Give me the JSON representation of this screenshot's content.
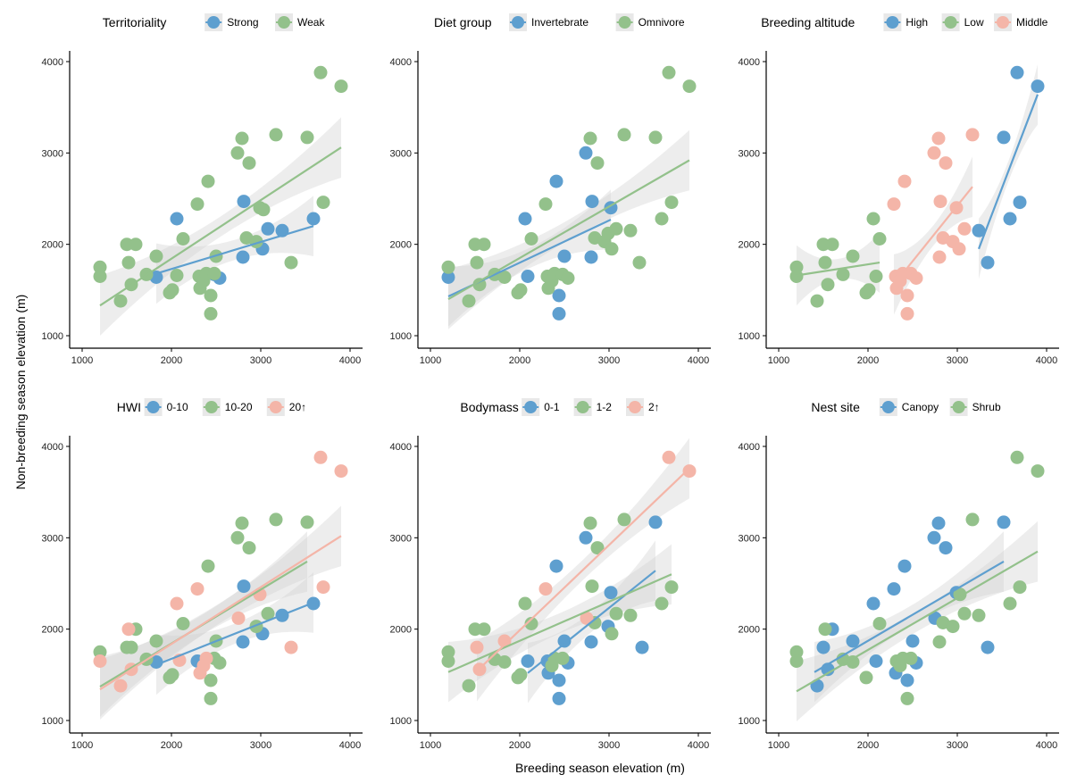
{
  "xlabel": "Breeding season elevation (m)",
  "ylabel": "Non-breeding season elevation (m)",
  "chart_data": [
    {
      "type": "scatter",
      "legend_title": "Territoriality",
      "xlim": [
        1000,
        4000
      ],
      "ylim": [
        1000,
        4000
      ],
      "xticks": [
        "1000",
        "2000",
        "3000",
        "4000"
      ],
      "yticks": [
        "1000",
        "2000",
        "3000",
        "4000"
      ],
      "grid": false,
      "legend_position": "top",
      "series": [
        {
          "name": "Strong",
          "color": "#5e9fcf",
          "x": [
            1830,
            2060,
            2480,
            2540,
            2800,
            2810,
            3020,
            3080,
            3240,
            3590
          ],
          "y": [
            1640,
            2280,
            1670,
            1630,
            1860,
            2470,
            1950,
            2170,
            2150,
            2280
          ],
          "fit": {
            "x": [
              1830,
              3590
            ],
            "y": [
              1680,
              2200
            ]
          }
        },
        {
          "name": "Weak",
          "color": "#93c18b",
          "x": [
            1200,
            1200,
            1430,
            1500,
            1520,
            1550,
            1600,
            1720,
            1830,
            1980,
            2010,
            2060,
            2130,
            2290,
            2310,
            2320,
            2360,
            2390,
            2410,
            2440,
            2440,
            2480,
            2500,
            2740,
            2790,
            2840,
            2870,
            2950,
            2990,
            3030,
            3170,
            3340,
            3520,
            3670,
            3700,
            3900
          ],
          "y": [
            1750,
            1650,
            1380,
            2000,
            1800,
            1560,
            2000,
            1670,
            1870,
            1470,
            1500,
            1660,
            2060,
            2440,
            1650,
            1520,
            1600,
            1680,
            2690,
            1440,
            1240,
            1680,
            1870,
            3000,
            3160,
            2070,
            2890,
            2030,
            2400,
            2380,
            3200,
            1800,
            3170,
            3880,
            2460,
            3730
          ],
          "fit": {
            "x": [
              1200,
              3900
            ],
            "y": [
              1330,
              3060
            ]
          }
        }
      ]
    },
    {
      "type": "scatter",
      "legend_title": "Diet group",
      "xlim": [
        1000,
        4000
      ],
      "ylim": [
        1000,
        4000
      ],
      "xticks": [
        "1000",
        "2000",
        "3000",
        "4000"
      ],
      "yticks": [
        "1000",
        "2000",
        "3000",
        "4000"
      ],
      "grid": false,
      "legend_position": "top",
      "series": [
        {
          "name": "Invertebrate",
          "color": "#5e9fcf",
          "x": [
            1200,
            2060,
            2090,
            2410,
            2440,
            2440,
            2500,
            2740,
            2800,
            2810,
            3020
          ],
          "y": [
            1640,
            2280,
            1650,
            2690,
            1440,
            1240,
            1870,
            3000,
            1860,
            2470,
            2400
          ],
          "fit": {
            "x": [
              1200,
              3020
            ],
            "y": [
              1430,
              2270
            ]
          }
        },
        {
          "name": "Omnivore",
          "color": "#93c18b",
          "x": [
            1200,
            1430,
            1500,
            1520,
            1550,
            1600,
            1720,
            1830,
            1980,
            2010,
            2130,
            2290,
            2310,
            2320,
            2360,
            2390,
            2480,
            2540,
            2790,
            2840,
            2870,
            2950,
            2990,
            3030,
            3080,
            3170,
            3240,
            3340,
            3520,
            3590,
            3670,
            3700,
            3900
          ],
          "y": [
            1750,
            1380,
            2000,
            1800,
            1560,
            2000,
            1670,
            1640,
            1470,
            1500,
            2060,
            2440,
            1650,
            1520,
            1600,
            1680,
            1670,
            1630,
            3160,
            2070,
            2890,
            2030,
            2120,
            1950,
            2170,
            3200,
            2150,
            1800,
            3170,
            2280,
            3880,
            2460,
            3730
          ],
          "fit": {
            "x": [
              1200,
              3900
            ],
            "y": [
              1400,
              2920
            ]
          }
        }
      ]
    },
    {
      "type": "scatter",
      "legend_title": "Breeding altitude",
      "xlim": [
        1000,
        4000
      ],
      "ylim": [
        1000,
        4000
      ],
      "xticks": [
        "1000",
        "2000",
        "3000",
        "4000"
      ],
      "yticks": [
        "1000",
        "2000",
        "3000",
        "4000"
      ],
      "grid": false,
      "legend_position": "top",
      "series": [
        {
          "name": "High",
          "color": "#5e9fcf",
          "x": [
            3240,
            3340,
            3520,
            3590,
            3670,
            3700,
            3900
          ],
          "y": [
            2150,
            1800,
            3170,
            2280,
            3880,
            2460,
            3730
          ],
          "fit": {
            "x": [
              3240,
              3900
            ],
            "y": [
              1950,
              3640
            ]
          }
        },
        {
          "name": "Low",
          "color": "#93c18b",
          "x": [
            1200,
            1200,
            1430,
            1500,
            1520,
            1550,
            1600,
            1720,
            1830,
            1980,
            2010,
            2060,
            2090,
            2130
          ],
          "y": [
            1750,
            1650,
            1380,
            2000,
            1800,
            1560,
            2000,
            1670,
            1870,
            1470,
            1500,
            2280,
            1650,
            2060
          ],
          "fit": {
            "x": [
              1200,
              2130
            ],
            "y": [
              1660,
              1800
            ]
          }
        },
        {
          "name": "Middle",
          "color": "#f4b5a8",
          "x": [
            2290,
            2310,
            2320,
            2360,
            2390,
            2410,
            2440,
            2440,
            2480,
            2540,
            2740,
            2790,
            2800,
            2810,
            2840,
            2870,
            2950,
            2990,
            3020,
            3080,
            3170
          ],
          "y": [
            2440,
            1650,
            1520,
            1600,
            1680,
            2690,
            1440,
            1240,
            1680,
            1630,
            3000,
            3160,
            1860,
            2470,
            2070,
            2890,
            2030,
            2400,
            1950,
            2170,
            3200
          ],
          "fit": {
            "x": [
              2290,
              3170
            ],
            "y": [
              1560,
              2630
            ]
          }
        }
      ]
    },
    {
      "type": "scatter",
      "legend_title": "HWI",
      "xlim": [
        1000,
        4000
      ],
      "ylim": [
        1000,
        4000
      ],
      "xticks": [
        "1000",
        "2000",
        "3000",
        "4000"
      ],
      "yticks": [
        "1000",
        "2000",
        "3000",
        "4000"
      ],
      "grid": false,
      "legend_position": "top",
      "series": [
        {
          "name": "0-10",
          "color": "#5e9fcf",
          "x": [
            1830,
            2290,
            2810,
            2800,
            3020,
            3240,
            3590
          ],
          "y": [
            1640,
            1650,
            2470,
            1860,
            1950,
            2150,
            2280
          ],
          "fit": {
            "x": [
              1830,
              3590
            ],
            "y": [
              1610,
              2290
            ]
          }
        },
        {
          "name": "10-20",
          "color": "#93c18b",
          "x": [
            1200,
            1500,
            1550,
            1600,
            1720,
            1830,
            1980,
            2010,
            2130,
            2410,
            2440,
            2440,
            2480,
            2500,
            2540,
            2740,
            2790,
            2870,
            2950,
            3080,
            3170,
            3520
          ],
          "y": [
            1750,
            1800,
            1800,
            2000,
            1670,
            1870,
            1470,
            1500,
            2060,
            2690,
            1440,
            1240,
            1680,
            1870,
            1630,
            3000,
            3160,
            2890,
            2030,
            2170,
            3200,
            3170
          ],
          "fit": {
            "x": [
              1200,
              3520
            ],
            "y": [
              1370,
              2740
            ]
          }
        },
        {
          "name": "20↑",
          "color": "#f4b5a8",
          "x": [
            1200,
            1430,
            1520,
            1550,
            2060,
            2090,
            2290,
            2320,
            2360,
            2390,
            2750,
            2990,
            3340,
            3670,
            3700,
            3900
          ],
          "y": [
            1650,
            1380,
            2000,
            1560,
            2280,
            1660,
            2440,
            1520,
            1600,
            1680,
            2120,
            2380,
            1800,
            3880,
            2460,
            3730
          ],
          "fit": {
            "x": [
              1200,
              3900
            ],
            "y": [
              1340,
              3020
            ]
          }
        }
      ]
    },
    {
      "type": "scatter",
      "legend_title": "Bodymass",
      "xlim": [
        1000,
        4000
      ],
      "ylim": [
        1000,
        4000
      ],
      "xticks": [
        "1000",
        "2000",
        "3000",
        "4000"
      ],
      "yticks": [
        "1000",
        "2000",
        "3000",
        "4000"
      ],
      "grid": false,
      "legend_position": "top",
      "series": [
        {
          "name": "0-1",
          "color": "#5e9fcf",
          "x": [
            2090,
            2310,
            2320,
            2410,
            2440,
            2440,
            2500,
            2540,
            2740,
            2800,
            2990,
            3020,
            3370,
            3520
          ],
          "y": [
            1650,
            1650,
            1520,
            2690,
            1440,
            1240,
            1870,
            1630,
            3000,
            1860,
            2030,
            2400,
            1800,
            3170
          ],
          "fit": {
            "x": [
              2090,
              3520
            ],
            "y": [
              1520,
              2640
            ]
          }
        },
        {
          "name": "1-2",
          "color": "#93c18b",
          "x": [
            1200,
            1200,
            1430,
            1500,
            1600,
            1720,
            1830,
            1980,
            2010,
            2060,
            2130,
            2360,
            2390,
            2480,
            2790,
            2810,
            2840,
            2870,
            3030,
            3080,
            3170,
            3240,
            3590,
            3700
          ],
          "y": [
            1750,
            1650,
            1380,
            2000,
            2000,
            1670,
            1640,
            1470,
            1500,
            2280,
            2060,
            1600,
            1680,
            1680,
            3160,
            2470,
            2070,
            2890,
            1950,
            2170,
            3200,
            2150,
            2280,
            2460
          ],
          "fit": {
            "x": [
              1200,
              3700
            ],
            "y": [
              1530,
              2600
            ]
          }
        },
        {
          "name": "2↑",
          "color": "#f4b5a8",
          "x": [
            1520,
            1550,
            1830,
            2290,
            2750,
            3670,
            3900
          ],
          "y": [
            1800,
            1560,
            1870,
            2440,
            2120,
            3880,
            3730
          ],
          "fit": {
            "x": [
              1520,
              3900
            ],
            "y": [
              1540,
              3760
            ]
          }
        }
      ]
    },
    {
      "type": "scatter",
      "legend_title": "Nest site",
      "xlim": [
        1000,
        4000
      ],
      "ylim": [
        1000,
        4000
      ],
      "xticks": [
        "1000",
        "2000",
        "3000",
        "4000"
      ],
      "yticks": [
        "1000",
        "2000",
        "3000",
        "4000"
      ],
      "grid": false,
      "legend_position": "top",
      "series": [
        {
          "name": "Canopy",
          "color": "#5e9fcf",
          "x": [
            1430,
            1500,
            1550,
            1600,
            1830,
            2060,
            2090,
            2290,
            2310,
            2410,
            2440,
            2500,
            2540,
            2740,
            2750,
            2790,
            2870,
            2990,
            3340,
            3520
          ],
          "y": [
            1380,
            1800,
            1560,
            2000,
            1870,
            2280,
            1650,
            2440,
            1520,
            2690,
            1440,
            1870,
            1630,
            3000,
            2120,
            3160,
            2890,
            2400,
            1800,
            3170
          ],
          "fit": {
            "x": [
              1400,
              3520
            ],
            "y": [
              1530,
              2740
            ]
          }
        },
        {
          "name": "Shrub",
          "color": "#93c18b",
          "x": [
            1200,
            1200,
            1520,
            1720,
            1830,
            1980,
            2130,
            2320,
            2360,
            2390,
            2440,
            2480,
            2800,
            2840,
            2950,
            3030,
            3080,
            3170,
            3240,
            3590,
            3670,
            3700,
            3900
          ],
          "y": [
            1750,
            1650,
            2000,
            1670,
            1640,
            1470,
            2060,
            1650,
            1600,
            1680,
            1240,
            1680,
            1860,
            2070,
            2030,
            2380,
            2170,
            3200,
            2150,
            2280,
            3880,
            2460,
            3730
          ],
          "fit": {
            "x": [
              1200,
              3900
            ],
            "y": [
              1320,
              2850
            ]
          }
        }
      ]
    }
  ]
}
